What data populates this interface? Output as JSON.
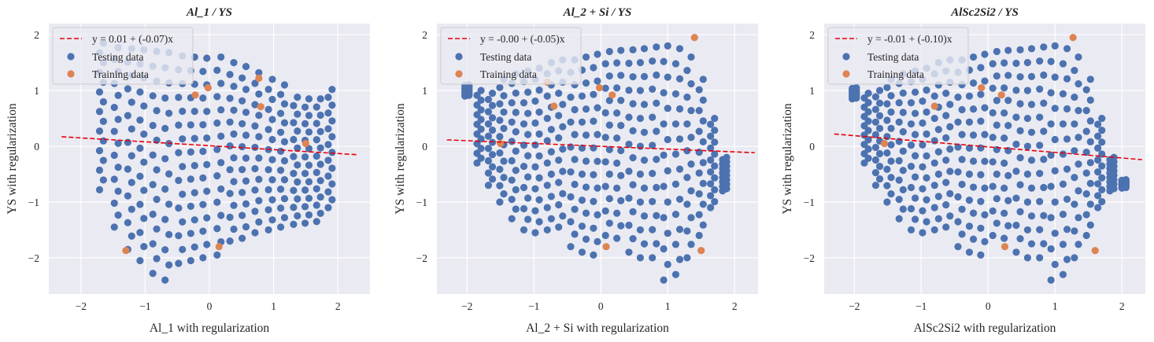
{
  "colors": {
    "background": "#eaeaf2",
    "grid": "#ffffff",
    "testing": "#4c72b0",
    "training": "#dd8452",
    "fit_line": "#e8000b"
  },
  "chart_data": [
    {
      "type": "scatter",
      "title": "Al_1 / YS",
      "xlabel": "Al_1 with regularization",
      "ylabel": "YS with regularization",
      "xlim": [
        -2.5,
        2.5
      ],
      "ylim": [
        -2.65,
        2.2
      ],
      "xticks": [
        -2,
        -1,
        0,
        1,
        2
      ],
      "yticks": [
        -2,
        -1,
        0,
        1,
        2
      ],
      "tick_labels": {
        "x": [
          "−2",
          "−1",
          "0",
          "1",
          "2"
        ],
        "y": [
          "−2",
          "−1",
          "0",
          "1",
          "2"
        ]
      },
      "grid": true,
      "legend_position": "upper-left",
      "fit": {
        "label": "y = 0.01 + (-0.07)x",
        "intercept": 0.01,
        "slope": -0.07,
        "x_range": [
          -2.3,
          2.3
        ]
      },
      "series": [
        {
          "name": "Testing data",
          "x_columns": [
            -1.68,
            -1.45,
            -1.24,
            -1.05,
            -0.85,
            -0.66,
            -0.45,
            -0.26,
            -0.07,
            0.15,
            0.35,
            0.54,
            0.74,
            0.95,
            1.14,
            1.34,
            1.52,
            1.7,
            1.88
          ],
          "y_ranges": [
            [
              -0.78,
              1.85
            ],
            [
              -1.45,
              1.77
            ],
            [
              -1.85,
              1.75
            ],
            [
              -2.05,
              1.73
            ],
            [
              -2.28,
              1.7
            ],
            [
              -2.4,
              1.68
            ],
            [
              -2.1,
              1.62
            ],
            [
              -2.05,
              1.6
            ],
            [
              -2.0,
              1.58
            ],
            [
              -1.95,
              1.6
            ],
            [
              -1.7,
              1.5
            ],
            [
              -1.65,
              1.43
            ],
            [
              -1.55,
              1.32
            ],
            [
              -1.5,
              1.2
            ],
            [
              -1.45,
              1.1
            ],
            [
              -1.4,
              0.88
            ],
            [
              -1.38,
              0.85
            ],
            [
              -1.35,
              0.85
            ],
            [
              -1.1,
              1.02
            ]
          ],
          "points_per_column": 16
        },
        {
          "name": "Training data",
          "points": [
            [
              -1.3,
              -1.87
            ],
            [
              -0.22,
              0.92
            ],
            [
              -0.02,
              1.05
            ],
            [
              0.15,
              -1.8
            ],
            [
              0.77,
              1.22
            ],
            [
              0.8,
              0.71
            ],
            [
              1.5,
              0.05
            ]
          ]
        }
      ]
    },
    {
      "type": "scatter",
      "title": "Al_2 + Si / YS",
      "xlabel": "Al_2 + Si with regularization",
      "ylabel": "YS with regularization",
      "xlim": [
        -2.45,
        2.35
      ],
      "ylim": [
        -2.65,
        2.2
      ],
      "xticks": [
        -2,
        -1,
        0,
        1,
        2
      ],
      "yticks": [
        -2,
        -1,
        0,
        1,
        2
      ],
      "tick_labels": {
        "x": [
          "−2",
          "−1",
          "0",
          "1",
          "2"
        ],
        "y": [
          "−2",
          "−1",
          "0",
          "1",
          "2"
        ]
      },
      "grid": true,
      "legend_position": "upper-left",
      "fit": {
        "label": "y = -0.00 + (-0.05)x",
        "intercept": -0.0,
        "slope": -0.05,
        "x_range": [
          -2.3,
          2.3
        ]
      },
      "series": [
        {
          "name": "Testing data",
          "x_columns": [
            -2.0,
            -1.82,
            -1.65,
            -1.48,
            -1.3,
            -1.12,
            -0.95,
            -0.77,
            -0.6,
            -0.42,
            -0.25,
            -0.08,
            0.1,
            0.27,
            0.45,
            0.62,
            0.8,
            0.97,
            1.15,
            1.32,
            1.5,
            1.67,
            1.85
          ],
          "y_ranges": [
            [
              0.9,
              1.1
            ],
            [
              -0.3,
              1.0
            ],
            [
              -0.7,
              0.95
            ],
            [
              -1.0,
              1.2
            ],
            [
              -1.3,
              1.3
            ],
            [
              -1.5,
              1.35
            ],
            [
              -1.55,
              1.4
            ],
            [
              -1.5,
              1.5
            ],
            [
              -1.45,
              1.55
            ],
            [
              -1.8,
              1.55
            ],
            [
              -1.9,
              1.6
            ],
            [
              -1.95,
              1.65
            ],
            [
              -1.6,
              1.7
            ],
            [
              -1.65,
              1.72
            ],
            [
              -1.9,
              1.73
            ],
            [
              -2.0,
              1.75
            ],
            [
              -2.0,
              1.78
            ],
            [
              -2.4,
              1.8
            ],
            [
              -2.3,
              1.75
            ],
            [
              -2.0,
              1.6
            ],
            [
              -1.6,
              1.2
            ],
            [
              -1.1,
              0.5
            ],
            [
              -0.8,
              -0.2
            ]
          ],
          "points_per_column": 16
        },
        {
          "name": "Training data",
          "points": [
            [
              1.4,
              1.95
            ],
            [
              -0.8,
              1.15
            ],
            [
              -0.7,
              0.72
            ],
            [
              -0.02,
              1.05
            ],
            [
              0.17,
              0.92
            ],
            [
              -1.5,
              0.05
            ],
            [
              0.08,
              -1.8
            ],
            [
              1.5,
              -1.87
            ]
          ]
        }
      ]
    },
    {
      "type": "scatter",
      "title": "AlSc2Si2 / YS",
      "xlabel": "AlSc2Si2 with regularization",
      "ylabel": "YS with regularization",
      "xlim": [
        -2.45,
        2.35
      ],
      "ylim": [
        -2.65,
        2.2
      ],
      "xticks": [
        -2,
        -1,
        0,
        1,
        2
      ],
      "yticks": [
        -2,
        -1,
        0,
        1,
        2
      ],
      "tick_labels": {
        "x": [
          "−2",
          "−1",
          "0",
          "1",
          "2"
        ],
        "y": [
          "−2",
          "−1",
          "0",
          "1",
          "2"
        ]
      },
      "grid": true,
      "legend_position": "upper-left",
      "fit": {
        "label": "y = -0.01 + (-0.10)x",
        "intercept": -0.01,
        "slope": -0.1,
        "x_range": [
          -2.3,
          2.3
        ]
      },
      "series": [
        {
          "name": "Testing data",
          "x_columns": [
            -2.0,
            -1.82,
            -1.65,
            -1.48,
            -1.3,
            -1.12,
            -0.95,
            -0.77,
            -0.6,
            -0.42,
            -0.25,
            -0.08,
            0.1,
            0.27,
            0.45,
            0.62,
            0.8,
            0.97,
            1.15,
            1.32,
            1.5,
            1.67,
            1.85,
            2.03
          ],
          "y_ranges": [
            [
              0.85,
              1.05
            ],
            [
              -0.3,
              0.95
            ],
            [
              -0.7,
              1.0
            ],
            [
              -1.0,
              1.2
            ],
            [
              -1.3,
              1.3
            ],
            [
              -1.5,
              1.35
            ],
            [
              -1.55,
              1.4
            ],
            [
              -1.5,
              1.5
            ],
            [
              -1.45,
              1.55
            ],
            [
              -1.8,
              1.55
            ],
            [
              -1.9,
              1.6
            ],
            [
              -1.95,
              1.65
            ],
            [
              -1.6,
              1.7
            ],
            [
              -1.65,
              1.72
            ],
            [
              -1.9,
              1.73
            ],
            [
              -2.0,
              1.75
            ],
            [
              -2.0,
              1.78
            ],
            [
              -2.4,
              1.8
            ],
            [
              -2.3,
              1.75
            ],
            [
              -2.0,
              1.6
            ],
            [
              -1.6,
              1.2
            ],
            [
              -1.1,
              0.5
            ],
            [
              -0.8,
              -0.2
            ],
            [
              -0.75,
              -0.6
            ]
          ],
          "points_per_column": 16
        },
        {
          "name": "Training data",
          "points": [
            [
              1.27,
              1.95
            ],
            [
              -0.8,
              0.72
            ],
            [
              -0.1,
              1.05
            ],
            [
              0.2,
              0.92
            ],
            [
              -1.55,
              0.05
            ],
            [
              0.25,
              -1.8
            ],
            [
              1.6,
              -1.87
            ]
          ]
        }
      ]
    }
  ]
}
